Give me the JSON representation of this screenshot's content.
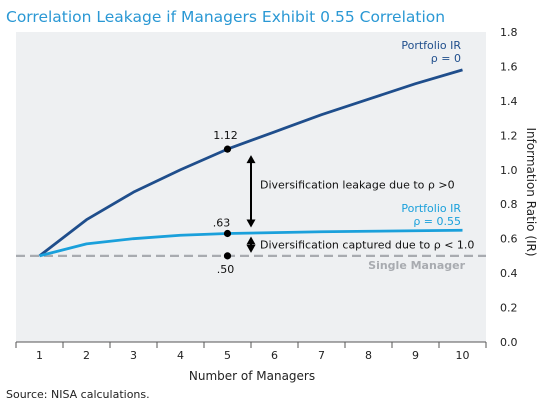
{
  "chart_data": {
    "type": "line",
    "title": "Correlation Leakage  if Managers  Exhibit 0.55 Correlation",
    "xlabel": "Number  of  Managers",
    "ylabel": "Information  Ratio  (IR)",
    "source": "Source: NISA calculations.",
    "x": [
      1,
      2,
      3,
      4,
      5,
      6,
      7,
      8,
      9,
      10
    ],
    "ylim": [
      0.0,
      1.8
    ],
    "yticks": [
      "0.0",
      "0.2",
      "0.4",
      "0.6",
      "0.8",
      "1.0",
      "1.2",
      "1.4",
      "1.6",
      "1.8"
    ],
    "series": [
      {
        "name_line1": "Portfolio IR",
        "name_line2": "ρ = 0",
        "color": "#1f4e8c",
        "values": [
          0.5,
          0.71,
          0.87,
          1.0,
          1.12,
          1.22,
          1.32,
          1.41,
          1.5,
          1.58
        ]
      },
      {
        "name_line1": "Portfolio IR",
        "name_line2": "ρ = 0.55",
        "color": "#1aa0db",
        "values": [
          0.5,
          0.57,
          0.6,
          0.62,
          0.63,
          0.635,
          0.64,
          0.643,
          0.646,
          0.649
        ]
      }
    ],
    "baseline": {
      "label": "Single Manager",
      "value": 0.5,
      "color": "#a8abb0"
    },
    "annotations": {
      "point_labels": [
        ".50",
        ".63",
        "1.12"
      ],
      "leakage": "Diversification leakage due to ρ >0",
      "captured": "Diversification captured due to ρ < 1.0"
    }
  }
}
